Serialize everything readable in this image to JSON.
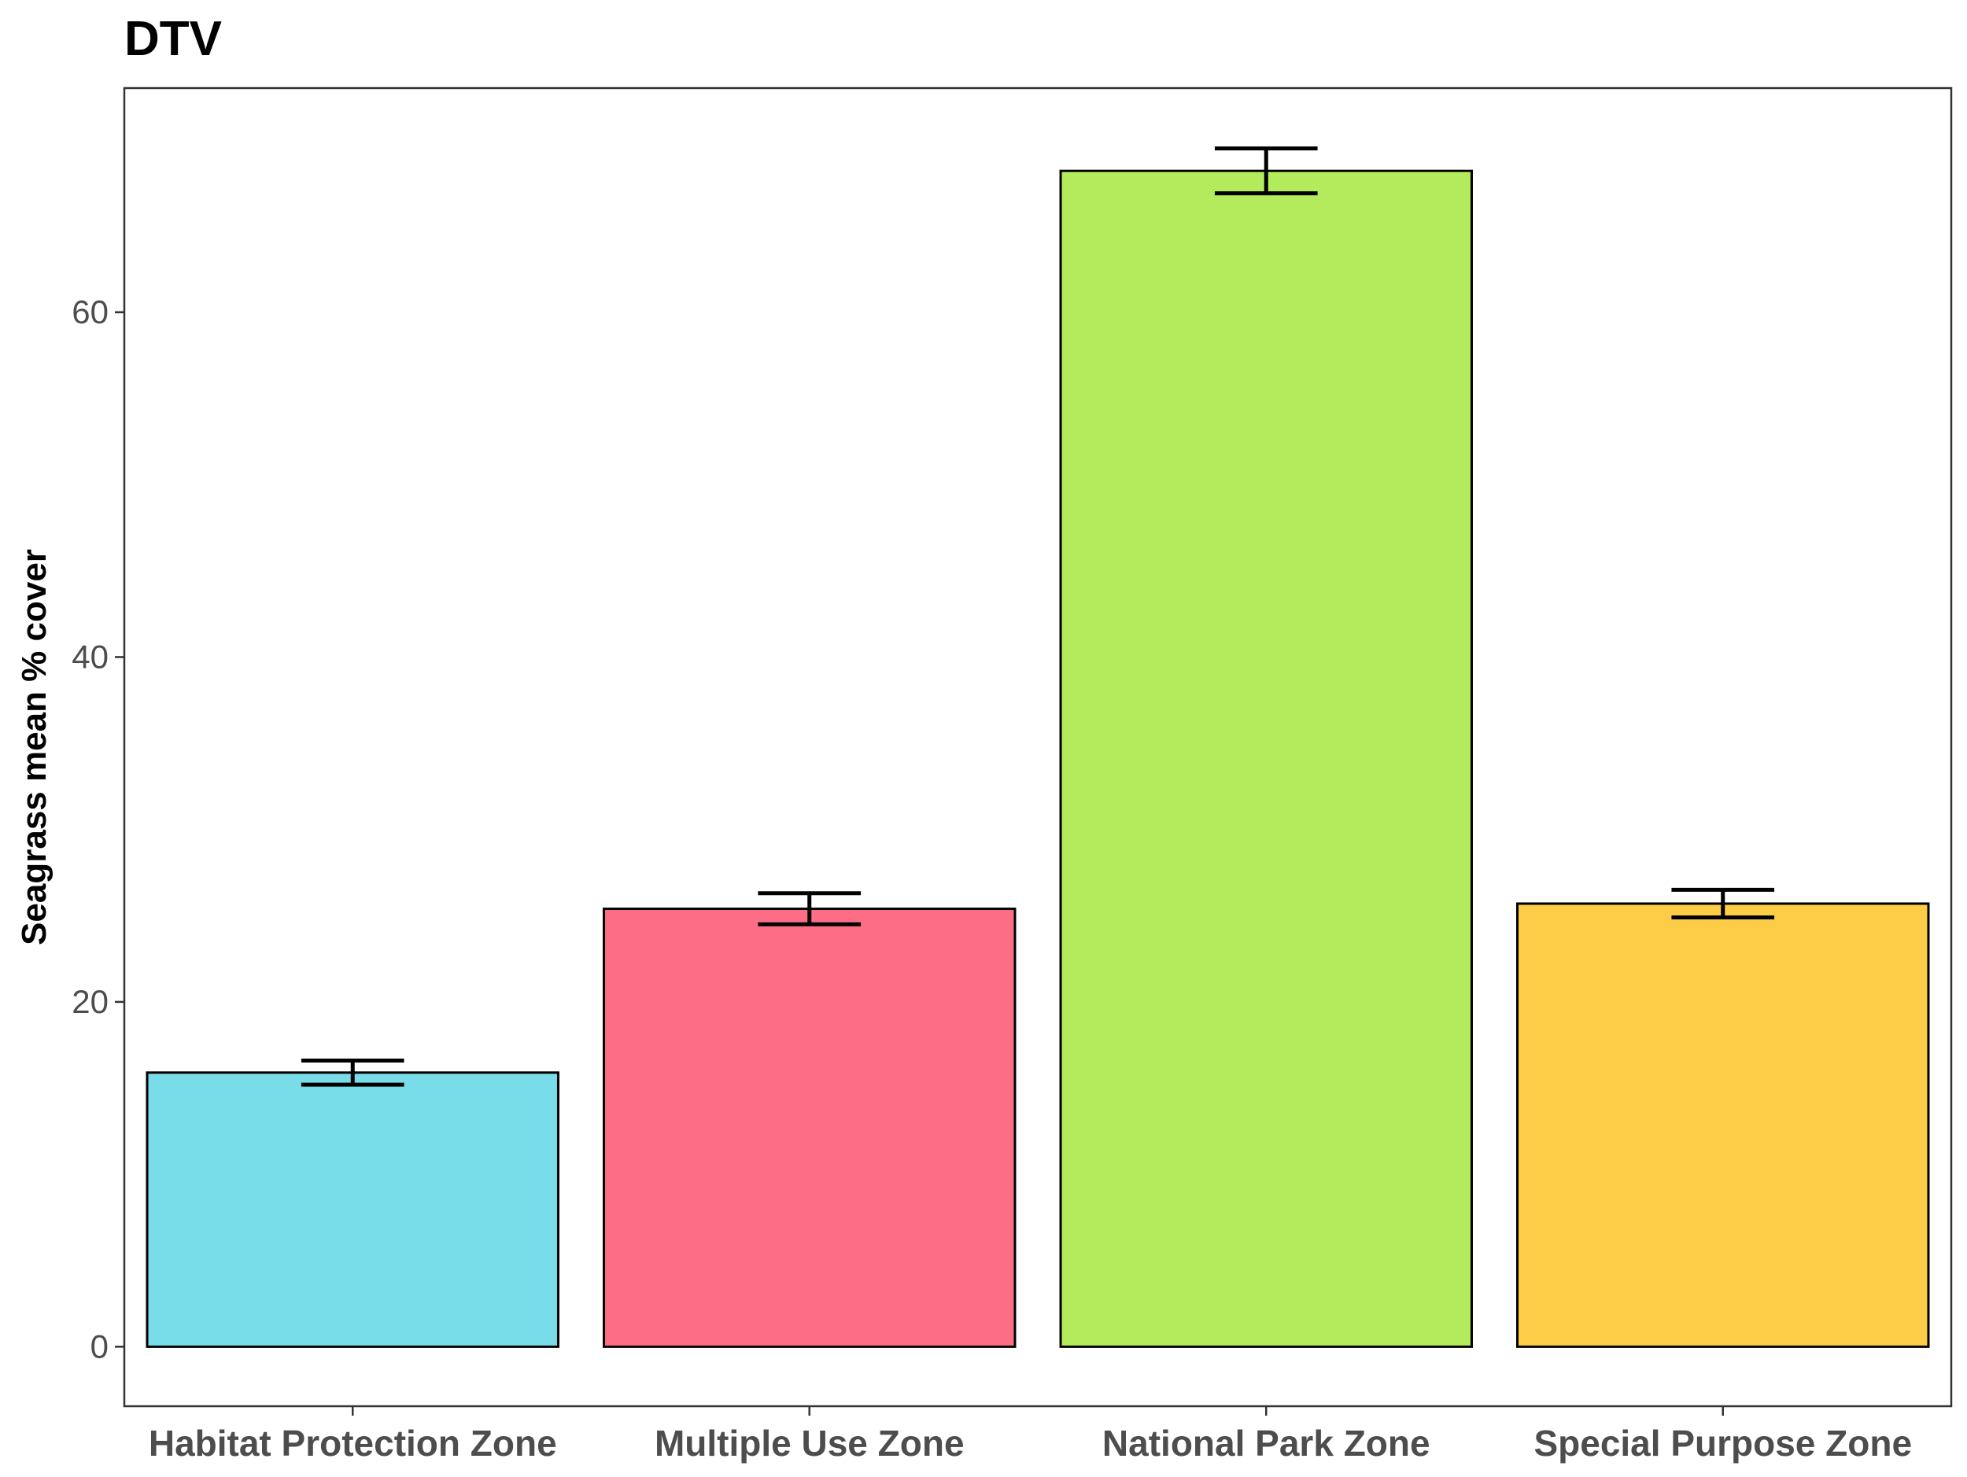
{
  "chart_data": {
    "type": "bar",
    "title": "DTV",
    "xlabel": "",
    "ylabel": "Seagrass mean % cover",
    "categories": [
      "Habitat Protection Zone",
      "Multiple Use Zone",
      "National Park Zone",
      "Special Purpose Zone"
    ],
    "values": [
      15.9,
      25.4,
      68.2,
      25.7
    ],
    "error_low": [
      15.2,
      24.5,
      66.9,
      24.9
    ],
    "error_high": [
      16.6,
      26.3,
      69.5,
      26.5
    ],
    "colors": [
      "#78DDE8",
      "#FD6E86",
      "#B3EB5C",
      "#FECD47"
    ],
    "yticks": [
      0,
      20,
      40,
      60
    ],
    "ylim": [
      -3.45,
      73.0
    ],
    "grid": false,
    "legend": "none"
  }
}
